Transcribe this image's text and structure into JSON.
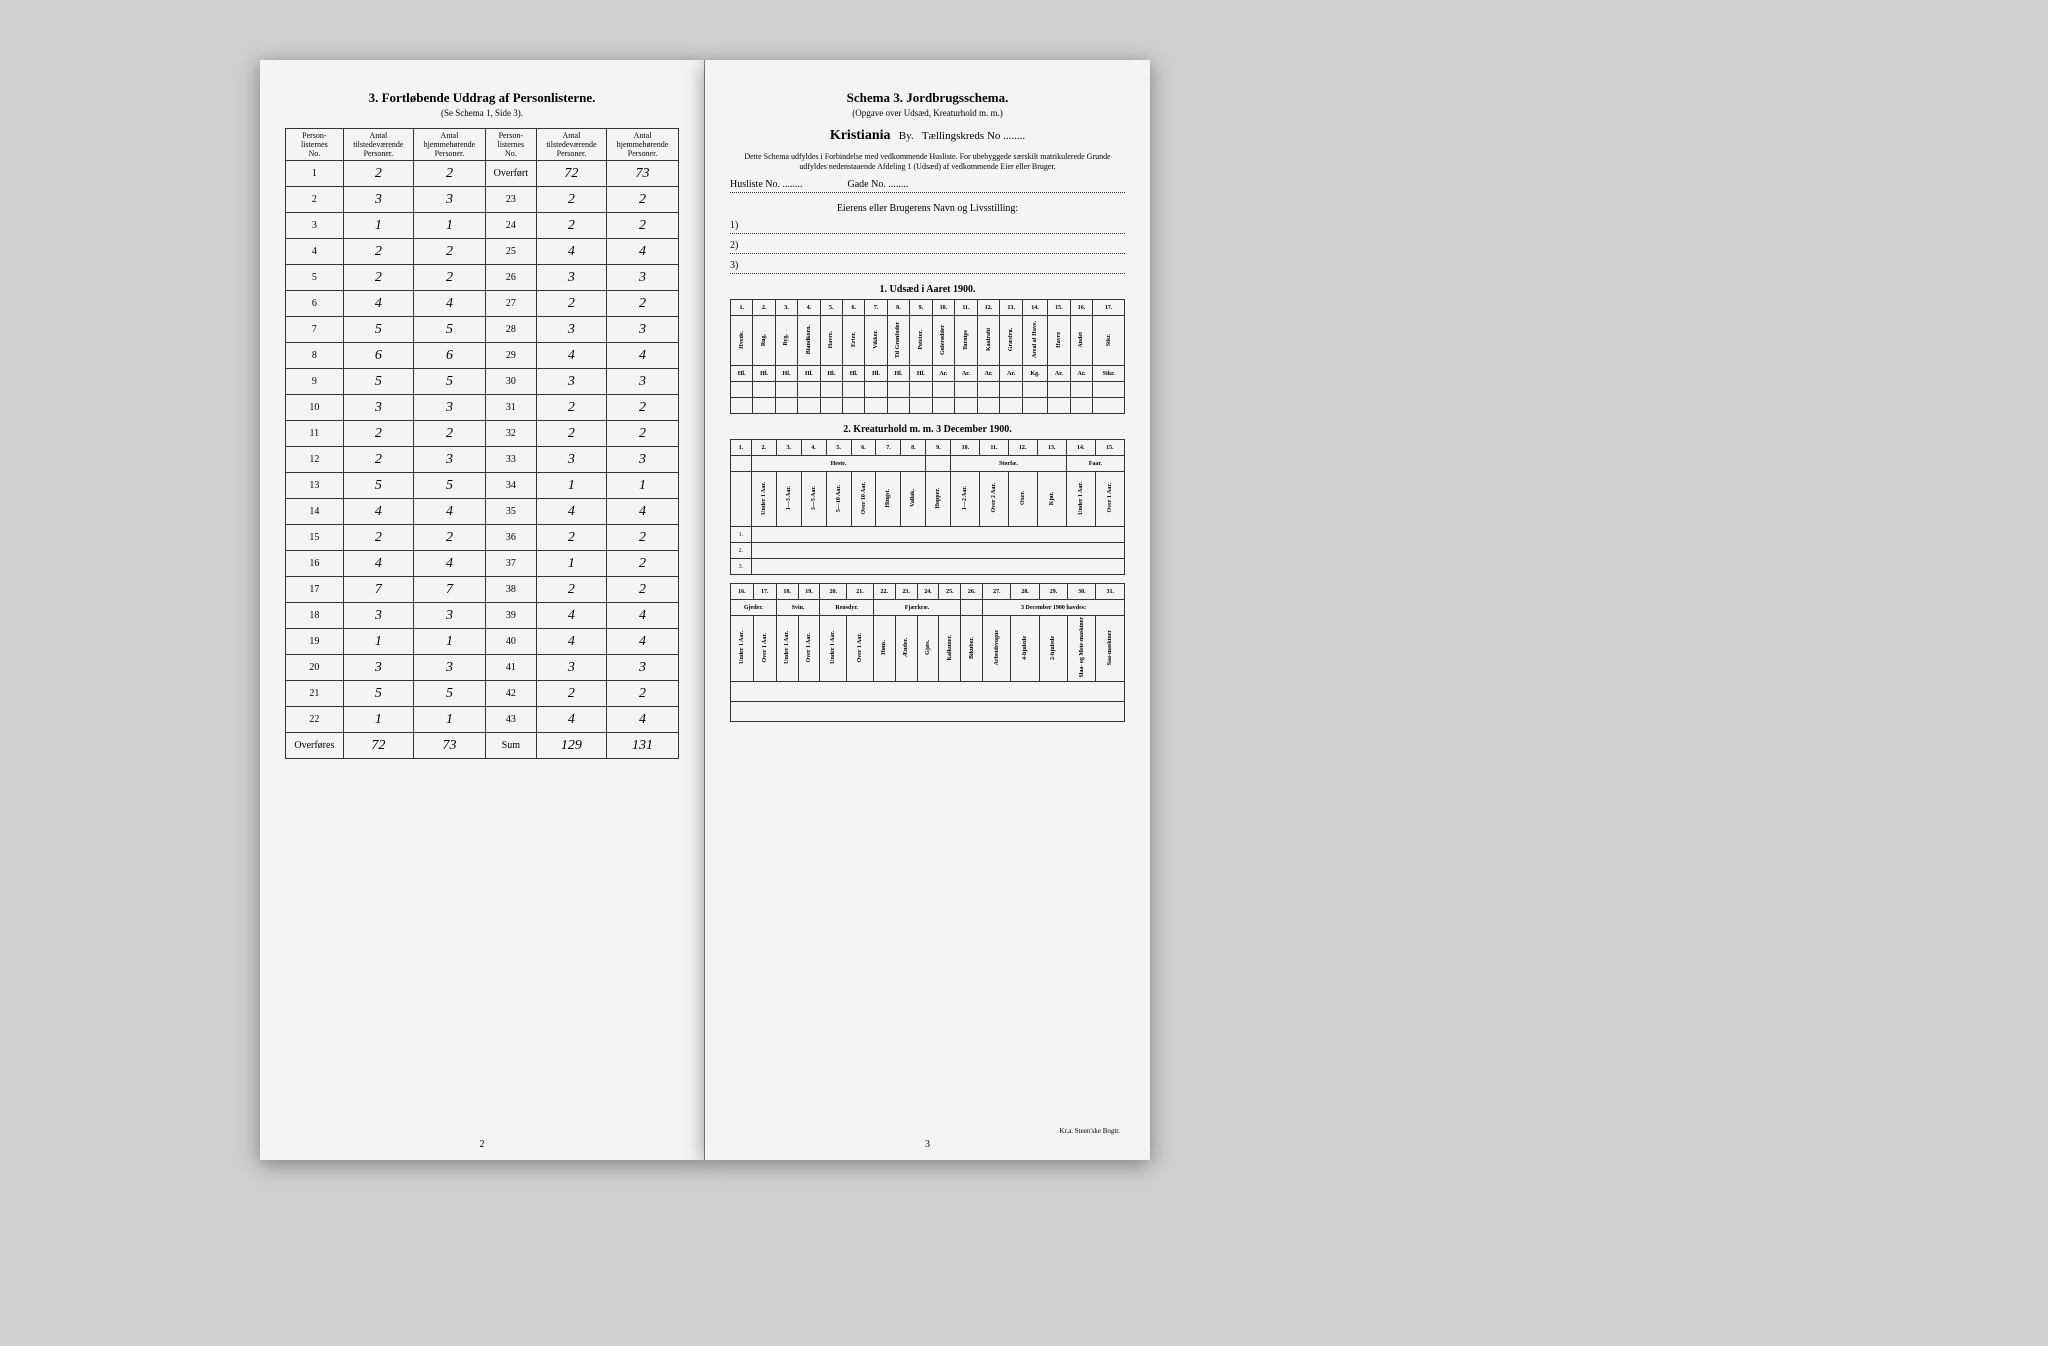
{
  "left": {
    "title": "3.  Fortløbende Uddrag af Personlisterne.",
    "subtitle": "(Se Schema 1, Side 3).",
    "headers": [
      "Person-\nlisternes\nNo.",
      "Antal\ntilstedeværende\nPersoner.",
      "Antal\nhjemmehørende\nPersoner.",
      "Person-\nlisternes\nNo.",
      "Antal\ntilstedeværende\nPersoner.",
      "Antal\nhjemmehørende\nPersoner."
    ],
    "rows": [
      [
        "1",
        "2",
        "2",
        "Overført",
        "72",
        "73"
      ],
      [
        "2",
        "3",
        "3",
        "23",
        "2",
        "2"
      ],
      [
        "3",
        "1",
        "1",
        "24",
        "2",
        "2"
      ],
      [
        "4",
        "2",
        "2",
        "25",
        "4",
        "4"
      ],
      [
        "5",
        "2",
        "2",
        "26",
        "3",
        "3"
      ],
      [
        "6",
        "4",
        "4",
        "27",
        "2",
        "2"
      ],
      [
        "7",
        "5",
        "5",
        "28",
        "3",
        "3"
      ],
      [
        "8",
        "6",
        "6",
        "29",
        "4",
        "4"
      ],
      [
        "9",
        "5",
        "5",
        "30",
        "3",
        "3"
      ],
      [
        "10",
        "3",
        "3",
        "31",
        "2",
        "2"
      ],
      [
        "11",
        "2",
        "2",
        "32",
        "2",
        "2"
      ],
      [
        "12",
        "2",
        "3",
        "33",
        "3",
        "3"
      ],
      [
        "13",
        "5",
        "5",
        "34",
        "1",
        "1"
      ],
      [
        "14",
        "4",
        "4",
        "35",
        "4",
        "4"
      ],
      [
        "15",
        "2",
        "2",
        "36",
        "2",
        "2"
      ],
      [
        "16",
        "4",
        "4",
        "37",
        "1",
        "2"
      ],
      [
        "17",
        "7",
        "7",
        "38",
        "2",
        "2"
      ],
      [
        "18",
        "3",
        "3",
        "39",
        "4",
        "4"
      ],
      [
        "19",
        "1",
        "1",
        "40",
        "4",
        "4"
      ],
      [
        "20",
        "3",
        "3",
        "41",
        "3",
        "3"
      ],
      [
        "21",
        "5",
        "5",
        "42",
        "2",
        "2"
      ],
      [
        "22",
        "1",
        "1",
        "43",
        "4",
        "4"
      ],
      [
        "Overføres",
        "72",
        "73",
        "Sum",
        "129",
        "131"
      ]
    ],
    "pagenum": "2"
  },
  "right": {
    "title": "Schema 3.  Jordbrugsschema.",
    "subtitle": "(Opgave over Udsæd, Kreaturhold m. m.)",
    "city": "Kristiania",
    "by_label": "By.",
    "kreds_label": "Tællingskreds No",
    "note": "Dette Schema udfyldes i Forbindelse med vedkommende Husliste. For ubebyggede særskilt matrikulerede Grunde udfyldes nedenstaaende Afdeling 1 (Udsæd) af vedkommende Eier eller Bruger.",
    "husliste": "Husliste No.",
    "gade": "Gade No.",
    "owner_label": "Eierens eller Brugerens Navn og Livsstilling:",
    "lines": [
      "1)",
      "2)",
      "3)"
    ],
    "sect1": "1. Udsæd i Aaret 1900.",
    "sect1_cols": [
      "1.",
      "2.",
      "3.",
      "4.",
      "5.",
      "6.",
      "7.",
      "8.",
      "9.",
      "10.",
      "11.",
      "12.",
      "13.",
      "14.",
      "15.",
      "16.",
      "17."
    ],
    "sect1_heads": [
      "Hvede.",
      "Rug.",
      "Byg.",
      "Blandkorn.",
      "Havre.",
      "Erter.",
      "Vikker.",
      "Til Grønfoder",
      "Poteter.",
      "Gulerødder",
      "Turnips",
      "Kaalrabi",
      "Græsfrø.",
      "Areal af Have.",
      "Havre",
      "Andet",
      "Stkr."
    ],
    "sect1_units": [
      "Hl.",
      "Hl.",
      "Hl.",
      "Hl.",
      "Hl.",
      "Hl.",
      "Hl.",
      "Hl.",
      "Hl.",
      "Ar.",
      "Ar.",
      "Ar.",
      "Ar.",
      "Kg.",
      "Ar.",
      "Ar.",
      "Stkr."
    ],
    "sect2": "2. Kreaturhold m. m. 3 December 1900.",
    "sect2_cols": [
      "1.",
      "2.",
      "3.",
      "4.",
      "5.",
      "6.",
      "7.",
      "8.",
      "9.",
      "10.",
      "11.",
      "12.",
      "13.",
      "14.",
      "15."
    ],
    "sect2_groups": [
      "Heste.",
      "Storfæ.",
      "Faar."
    ],
    "sect2_heads": [
      "Under 1 Aar.",
      "1—3 Aar.",
      "3—5 Aar.",
      "5—10 Aar.",
      "Over 10 Aar.",
      "Hingst.",
      "Vallak.",
      "Hopper.",
      "1—2 Aar.",
      "Over 2 Aar.",
      "Oxer.",
      "Kjør.",
      "Under 1 Aar.",
      "Over 1 Aar."
    ],
    "sect3_cols": [
      "16.",
      "17.",
      "18.",
      "19.",
      "20.",
      "21.",
      "22.",
      "23.",
      "24.",
      "25.",
      "26.",
      "27.",
      "28.",
      "29.",
      "30.",
      "31."
    ],
    "sect3_groups": [
      "Gjeder.",
      "Svin.",
      "Rensdyr.",
      "Fjærkræ.",
      "3 December 1900 havdes:"
    ],
    "sect3_heads": [
      "Under 1 Aar.",
      "Over 1 Aar.",
      "Under 1 Aar.",
      "Over 1 Aar.",
      "Under 1 Aar.",
      "Over 1 Aar.",
      "Høns.",
      "Ænder.",
      "Gjæs.",
      "Kalkuner.",
      "Bikuber.",
      "Arbeidsvogne",
      "4-hjulede",
      "2-hjulede",
      "Slaa- og Meie-maskiner",
      "Saa-maskiner"
    ],
    "pagenum": "3",
    "printer": "Kr.a. Steen'ske Bogtr."
  }
}
